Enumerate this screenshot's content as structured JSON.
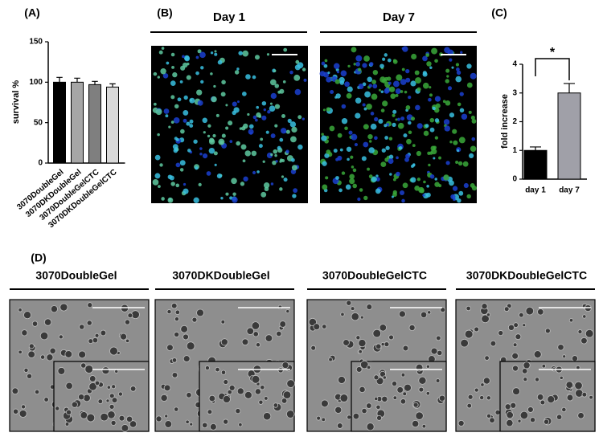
{
  "chart_data": [
    {
      "type": "bar",
      "panel_label": "(A)",
      "y_label": "survival %",
      "categories": [
        "3070DoubleGel",
        "3070DKDoubleGel",
        "3070DoubleGelCTC",
        "3070DKDoubleGelCTC"
      ],
      "values": [
        100,
        100,
        97,
        94
      ],
      "errors": [
        6,
        5,
        4,
        4
      ],
      "colors": [
        "#000000",
        "#a6a6a6",
        "#7f7f7f",
        "#d9d9d9"
      ],
      "ylim": [
        0,
        150
      ],
      "yticks": [
        0,
        50,
        100,
        150
      ]
    },
    {
      "type": "bar",
      "panel_label": "(C)",
      "y_label": "fold increase",
      "categories": [
        "day 1",
        "day 7"
      ],
      "values": [
        1,
        3.0
      ],
      "errors": [
        0.12,
        0.33
      ],
      "colors": [
        "#000000",
        "#a0a0a8"
      ],
      "ylim": [
        0,
        4
      ],
      "yticks": [
        0,
        1,
        2,
        3,
        4
      ],
      "annotation": "*"
    }
  ],
  "panel_b": {
    "label": "(B)",
    "columns": [
      "Day 1",
      "Day 7"
    ]
  },
  "panel_d": {
    "label": "(D)",
    "columns": [
      "3070DoubleGel",
      "3070DKDoubleGel",
      "3070DoubleGelCTC",
      "3070DKDoubleGelCTC"
    ]
  }
}
